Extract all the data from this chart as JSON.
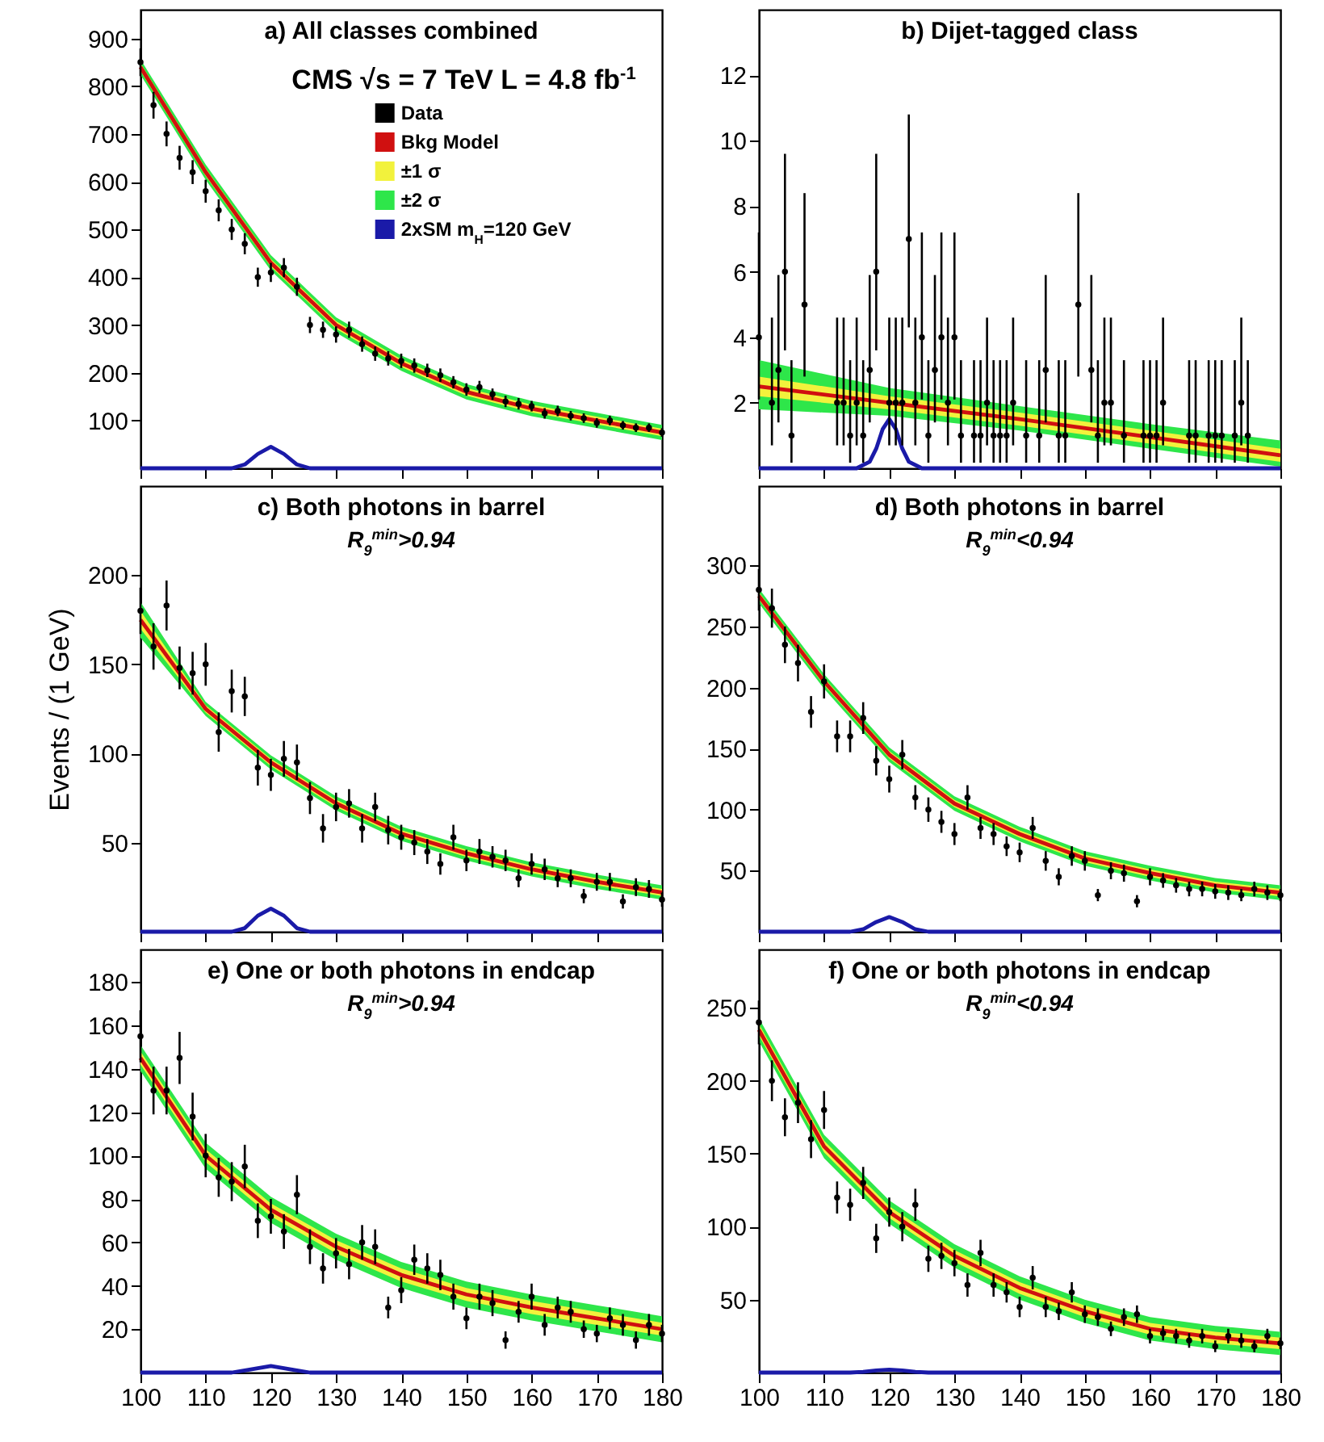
{
  "chart_data": [
    {
      "type": "scatter",
      "title": "a) All classes combined",
      "annotations": [
        "CMS √s = 7 TeV L = 4.8 fb$^{-1}$"
      ],
      "xlim": [
        100,
        180
      ],
      "xticks": [
        100,
        110,
        120,
        130,
        140,
        150,
        160,
        170,
        180
      ],
      "ylim": [
        0,
        960
      ],
      "yticks": [
        100,
        200,
        300,
        400,
        500,
        600,
        700,
        800,
        900
      ],
      "tick_labels": "y",
      "legend": "top right",
      "series": [
        {
          "name": "Data",
          "type": "scatter",
          "color": "#000000",
          "marker": "circle",
          "x": [
            100,
            102,
            104,
            106,
            108,
            110,
            112,
            114,
            116,
            118,
            120,
            122,
            124,
            126,
            128,
            130,
            132,
            134,
            136,
            138,
            140,
            142,
            144,
            146,
            148,
            150,
            152,
            154,
            156,
            158,
            160,
            162,
            164,
            166,
            168,
            170,
            172,
            174,
            176,
            178,
            180
          ],
          "values": [
            850,
            760,
            700,
            650,
            620,
            580,
            540,
            500,
            470,
            400,
            410,
            420,
            380,
            300,
            290,
            280,
            290,
            260,
            240,
            230,
            225,
            215,
            205,
            195,
            180,
            165,
            170,
            155,
            140,
            135,
            130,
            115,
            120,
            110,
            105,
            95,
            100,
            90,
            85,
            85,
            75
          ],
          "errors": [
            29,
            28,
            26,
            25,
            25,
            24,
            23,
            22,
            22,
            20,
            20,
            20,
            19,
            17,
            17,
            17,
            17,
            16,
            15,
            15,
            15,
            15,
            14,
            14,
            13,
            13,
            13,
            12,
            12,
            12,
            11,
            11,
            11,
            10,
            10,
            10,
            10,
            9,
            9,
            9,
            9
          ]
        },
        {
          "name": "Bkg Model",
          "type": "line",
          "color": "#d01010",
          "x": [
            100,
            110,
            120,
            130,
            140,
            150,
            160,
            170,
            180
          ],
          "values": [
            840,
            620,
            430,
            300,
            220,
            160,
            125,
            100,
            75
          ]
        },
        {
          "name": "±1 σ",
          "type": "line",
          "color": "#f2f23c",
          "x": [
            100,
            110,
            120,
            130,
            140,
            150,
            160,
            170,
            180
          ],
          "values": [
            null,
            null,
            null,
            null,
            null,
            null,
            null,
            null,
            null
          ],
          "lower": [
            832,
            612,
            422,
            292,
            212,
            152,
            117,
            92,
            67
          ],
          "upper": [
            848,
            628,
            438,
            308,
            228,
            168,
            133,
            108,
            83
          ]
        },
        {
          "name": "±2 σ",
          "type": "line",
          "color": "#2ee64a",
          "x": [
            100,
            110,
            120,
            130,
            140,
            150,
            160,
            170,
            180
          ],
          "values": [
            null,
            null,
            null,
            null,
            null,
            null,
            null,
            null,
            null
          ],
          "lower": [
            824,
            604,
            414,
            284,
            204,
            144,
            109,
            84,
            59
          ],
          "upper": [
            856,
            636,
            446,
            316,
            236,
            176,
            141,
            116,
            91
          ]
        },
        {
          "name": "2xSM m$_{H}$=120 GeV",
          "type": "line",
          "color": "#1a1aa8",
          "x": [
            100,
            114,
            116,
            118,
            120,
            122,
            124,
            126,
            180
          ],
          "values": [
            0,
            0,
            8,
            30,
            45,
            30,
            8,
            0,
            0
          ]
        }
      ]
    },
    {
      "type": "scatter",
      "title": "b) Dijet-tagged class",
      "xlim": [
        100,
        180
      ],
      "xticks": [
        100,
        110,
        120,
        130,
        140,
        150,
        160,
        170,
        180
      ],
      "ylim": [
        0,
        14
      ],
      "yticks": [
        2,
        4,
        6,
        8,
        10,
        12
      ],
      "tick_labels": "y",
      "series": [
        {
          "type": "line",
          "color": "#2ee64a",
          "x": [
            100,
            120,
            140,
            160,
            180
          ],
          "values": [
            null,
            null,
            null,
            null,
            null
          ],
          "lower": [
            1.8,
            1.6,
            1.15,
            0.6,
            0.05
          ],
          "upper": [
            3.3,
            2.45,
            1.9,
            1.35,
            0.85
          ]
        },
        {
          "type": "line",
          "color": "#f2f23c",
          "x": [
            100,
            120,
            140,
            160,
            180
          ],
          "values": [
            null,
            null,
            null,
            null,
            null
          ],
          "lower": [
            2.2,
            1.8,
            1.3,
            0.75,
            0.2
          ],
          "upper": [
            2.8,
            2.2,
            1.7,
            1.15,
            0.6
          ]
        },
        {
          "type": "line",
          "color": "#d01010",
          "x": [
            100,
            120,
            140,
            160,
            180
          ],
          "values": [
            2.5,
            2.0,
            1.5,
            0.95,
            0.4
          ]
        },
        {
          "type": "line",
          "color": "#1a1aa8",
          "x": [
            100,
            115,
            117,
            118,
            119,
            120,
            121,
            122,
            123,
            125,
            180
          ],
          "values": [
            0,
            0,
            0.2,
            0.6,
            1.2,
            1.5,
            1.2,
            0.6,
            0.2,
            0,
            0
          ]
        },
        {
          "type": "scatter",
          "color": "#000000",
          "marker": "circle",
          "x": [
            100,
            102,
            103,
            104,
            105,
            107,
            112,
            113,
            114,
            115,
            116,
            117,
            118,
            120,
            121,
            122,
            123,
            124,
            125,
            126,
            127,
            128,
            129,
            130,
            131,
            133,
            134,
            135,
            136,
            137,
            138,
            139,
            141,
            143,
            144,
            146,
            147,
            149,
            151,
            152,
            153,
            154,
            156,
            159,
            160,
            161,
            162,
            166,
            167,
            169,
            170,
            171,
            173,
            174,
            175
          ],
          "values": [
            4,
            2,
            3,
            6,
            1,
            5,
            2,
            2,
            1,
            2,
            1,
            3,
            6,
            2,
            2,
            2,
            7,
            2,
            4,
            1,
            3,
            4,
            2,
            4,
            1,
            1,
            1,
            2,
            1,
            1,
            1,
            2,
            1,
            1,
            3,
            1,
            1,
            5,
            3,
            1,
            2,
            2,
            1,
            1,
            1,
            1,
            2,
            1,
            1,
            1,
            1,
            1,
            1,
            2,
            1
          ],
          "errors": [
            [
              2.1,
              7.2
            ],
            [
              0.7,
              4.6
            ],
            [
              1.4,
              5.9
            ],
            [
              3.6,
              9.6
            ],
            [
              0.17,
              3.3
            ],
            [
              2.8,
              8.4
            ],
            [
              0.7,
              4.6
            ],
            [
              0.7,
              4.6
            ],
            [
              0.17,
              3.3
            ],
            [
              0.7,
              4.6
            ],
            [
              0.17,
              3.3
            ],
            [
              1.4,
              5.9
            ],
            [
              3.6,
              9.6
            ],
            [
              0.7,
              4.6
            ],
            [
              0.7,
              4.6
            ],
            [
              0.7,
              4.6
            ],
            [
              4.3,
              10.8
            ],
            [
              0.7,
              4.6
            ],
            [
              2.1,
              7.2
            ],
            [
              0.17,
              3.3
            ],
            [
              1.4,
              5.9
            ],
            [
              2.1,
              7.2
            ],
            [
              0.7,
              4.6
            ],
            [
              2.1,
              7.2
            ],
            [
              0.17,
              3.3
            ],
            [
              0.17,
              3.3
            ],
            [
              0.17,
              3.3
            ],
            [
              0.7,
              4.6
            ],
            [
              0.17,
              3.3
            ],
            [
              0.17,
              3.3
            ],
            [
              0.17,
              3.3
            ],
            [
              0.7,
              4.6
            ],
            [
              0.17,
              3.3
            ],
            [
              0.17,
              3.3
            ],
            [
              1.4,
              5.9
            ],
            [
              0.17,
              3.3
            ],
            [
              0.17,
              3.3
            ],
            [
              2.8,
              8.4
            ],
            [
              1.4,
              5.9
            ],
            [
              0.17,
              3.3
            ],
            [
              0.7,
              4.6
            ],
            [
              0.7,
              4.6
            ],
            [
              0.17,
              3.3
            ],
            [
              0.17,
              3.3
            ],
            [
              0.17,
              3.3
            ],
            [
              0.17,
              3.3
            ],
            [
              0.7,
              4.6
            ],
            [
              0.17,
              3.3
            ],
            [
              0.17,
              3.3
            ],
            [
              0.17,
              3.3
            ],
            [
              0.17,
              3.3
            ],
            [
              0.17,
              3.3
            ],
            [
              0.17,
              3.3
            ],
            [
              0.7,
              4.6
            ],
            [
              0.17,
              3.3
            ]
          ]
        }
      ]
    },
    {
      "type": "scatter",
      "title": "c) Both photons in barrel",
      "subtitle": "R$_{9}$$^{min}$>0.94",
      "ylabel": "Events / (1 GeV)",
      "xlim": [
        100,
        180
      ],
      "xticks": [
        100,
        110,
        120,
        130,
        140,
        150,
        160,
        170,
        180
      ],
      "ylim": [
        0,
        250
      ],
      "yticks": [
        50,
        100,
        150,
        200
      ],
      "tick_labels": "y",
      "series": [
        {
          "type": "line",
          "color": "#2ee64a",
          "x": [
            100,
            110,
            120,
            130,
            140,
            150,
            160,
            170,
            180
          ],
          "values": [
            null,
            null,
            null,
            null,
            null,
            null,
            null,
            null,
            null
          ],
          "lower": [
            165,
            121,
            91,
            68,
            51,
            40,
            31,
            24,
            18
          ],
          "upper": [
            185,
            129,
            99,
            76,
            59,
            48,
            39,
            32,
            26
          ]
        },
        {
          "type": "line",
          "color": "#f2f23c",
          "x": [
            100,
            110,
            120,
            130,
            140,
            150,
            160,
            170,
            180
          ],
          "values": [
            null,
            null,
            null,
            null,
            null,
            null,
            null,
            null,
            null
          ],
          "lower": [
            170,
            123,
            93,
            70,
            53,
            42,
            33,
            26,
            20
          ],
          "upper": [
            180,
            127,
            97,
            74,
            57,
            46,
            37,
            30,
            24
          ]
        },
        {
          "type": "line",
          "color": "#d01010",
          "x": [
            100,
            110,
            120,
            130,
            140,
            150,
            160,
            170,
            180
          ],
          "values": [
            175,
            125,
            95,
            72,
            55,
            44,
            35,
            28,
            22
          ]
        },
        {
          "type": "line",
          "color": "#1a1aa8",
          "x": [
            100,
            114,
            116,
            118,
            120,
            122,
            124,
            126,
            180
          ],
          "values": [
            0,
            0,
            2,
            9,
            13,
            9,
            2,
            0,
            0
          ]
        },
        {
          "type": "scatter",
          "color": "#000000",
          "marker": "circle",
          "x": [
            100,
            102,
            104,
            106,
            108,
            110,
            112,
            114,
            116,
            118,
            120,
            122,
            124,
            126,
            128,
            130,
            132,
            134,
            136,
            138,
            140,
            142,
            144,
            146,
            148,
            150,
            152,
            154,
            156,
            158,
            160,
            162,
            164,
            166,
            168,
            170,
            172,
            174,
            176,
            178,
            180
          ],
          "values": [
            180,
            160,
            183,
            148,
            145,
            150,
            112,
            135,
            132,
            92,
            88,
            97,
            95,
            75,
            58,
            70,
            72,
            58,
            70,
            57,
            53,
            50,
            45,
            38,
            53,
            40,
            45,
            42,
            40,
            30,
            38,
            35,
            30,
            30,
            20,
            28,
            28,
            17,
            25,
            24,
            18
          ],
          "errors": [
            13,
            13,
            14,
            12,
            12,
            12,
            11,
            12,
            11,
            10,
            9,
            10,
            10,
            9,
            8,
            8,
            8,
            8,
            8,
            8,
            7,
            7,
            7,
            6,
            7,
            6,
            7,
            6,
            6,
            5,
            6,
            6,
            5,
            5,
            4,
            5,
            5,
            4,
            5,
            5,
            4
          ]
        }
      ]
    },
    {
      "type": "scatter",
      "title": "d) Both photons in barrel",
      "subtitle": "R$_{9}$$^{min}$<0.94",
      "xlim": [
        100,
        180
      ],
      "xticks": [
        100,
        110,
        120,
        130,
        140,
        150,
        160,
        170,
        180
      ],
      "ylim": [
        0,
        365
      ],
      "yticks": [
        50,
        100,
        150,
        200,
        250,
        300
      ],
      "tick_labels": "y",
      "series": [
        {
          "type": "line",
          "color": "#2ee64a",
          "x": [
            100,
            110,
            120,
            130,
            140,
            150,
            160,
            170,
            180
          ],
          "values": [
            null,
            null,
            null,
            null,
            null,
            null,
            null,
            null,
            null
          ],
          "lower": [
            269,
            199,
            139,
            99,
            74,
            54,
            42,
            32,
            26
          ],
          "upper": [
            281,
            211,
            151,
            111,
            86,
            66,
            54,
            44,
            38
          ]
        },
        {
          "type": "line",
          "color": "#f2f23c",
          "x": [
            100,
            110,
            120,
            130,
            140,
            150,
            160,
            170,
            180
          ],
          "values": [
            null,
            null,
            null,
            null,
            null,
            null,
            null,
            null,
            null
          ],
          "lower": [
            272,
            202,
            142,
            102,
            77,
            57,
            45,
            35,
            29
          ],
          "upper": [
            278,
            208,
            148,
            108,
            83,
            63,
            51,
            41,
            35
          ]
        },
        {
          "type": "line",
          "color": "#d01010",
          "x": [
            100,
            110,
            120,
            130,
            140,
            150,
            160,
            170,
            180
          ],
          "values": [
            275,
            205,
            145,
            105,
            80,
            60,
            48,
            38,
            32
          ]
        },
        {
          "type": "line",
          "color": "#1a1aa8",
          "x": [
            100,
            114,
            116,
            118,
            120,
            122,
            124,
            126,
            180
          ],
          "values": [
            0,
            0,
            2,
            8,
            12,
            8,
            2,
            0,
            0
          ]
        },
        {
          "type": "scatter",
          "color": "#000000",
          "marker": "circle",
          "x": [
            100,
            102,
            104,
            106,
            108,
            110,
            112,
            114,
            116,
            118,
            120,
            122,
            124,
            126,
            128,
            130,
            132,
            134,
            136,
            138,
            140,
            142,
            144,
            146,
            148,
            150,
            152,
            154,
            156,
            158,
            160,
            162,
            164,
            166,
            168,
            170,
            172,
            174,
            176,
            178,
            180
          ],
          "values": [
            280,
            265,
            235,
            220,
            180,
            205,
            160,
            160,
            175,
            140,
            125,
            145,
            110,
            100,
            90,
            80,
            110,
            85,
            80,
            70,
            65,
            85,
            58,
            45,
            62,
            58,
            30,
            50,
            48,
            25,
            45,
            42,
            38,
            35,
            35,
            33,
            32,
            30,
            35,
            32,
            30
          ],
          "errors": [
            17,
            16,
            15,
            15,
            13,
            14,
            13,
            13,
            13,
            12,
            11,
            12,
            10,
            10,
            9,
            9,
            10,
            9,
            9,
            8,
            8,
            9,
            8,
            7,
            8,
            8,
            5,
            7,
            7,
            5,
            7,
            6,
            6,
            6,
            6,
            6,
            6,
            5,
            6,
            6,
            5
          ]
        }
      ]
    },
    {
      "type": "scatter",
      "title": "e) One or both photons in endcap",
      "subtitle": "R$_{9}$$^{min}$>0.94",
      "xlim": [
        100,
        180
      ],
      "xticks": [
        100,
        110,
        120,
        130,
        140,
        150,
        160,
        170,
        180
      ],
      "ylim": [
        0,
        195
      ],
      "yticks": [
        20,
        40,
        60,
        80,
        100,
        120,
        140,
        160,
        180
      ],
      "series": [
        {
          "type": "line",
          "color": "#2ee64a",
          "x": [
            100,
            110,
            120,
            130,
            140,
            150,
            160,
            170,
            180
          ],
          "values": [
            null,
            null,
            null,
            null,
            null,
            null,
            null,
            null,
            null
          ],
          "lower": [
            139,
            94,
            69,
            52,
            39,
            30,
            24,
            19,
            14
          ],
          "upper": [
            151,
            106,
            81,
            64,
            51,
            42,
            36,
            31,
            26
          ]
        },
        {
          "type": "line",
          "color": "#f2f23c",
          "x": [
            100,
            110,
            120,
            130,
            140,
            150,
            160,
            170,
            180
          ],
          "values": [
            null,
            null,
            null,
            null,
            null,
            null,
            null,
            null,
            null
          ],
          "lower": [
            142,
            97,
            72,
            55,
            42,
            33,
            27,
            22,
            17
          ],
          "upper": [
            148,
            103,
            78,
            61,
            48,
            39,
            33,
            28,
            23
          ]
        },
        {
          "type": "line",
          "color": "#d01010",
          "x": [
            100,
            110,
            120,
            130,
            140,
            150,
            160,
            170,
            180
          ],
          "values": [
            145,
            100,
            75,
            58,
            45,
            36,
            30,
            25,
            20
          ]
        },
        {
          "type": "line",
          "color": "#1a1aa8",
          "x": [
            100,
            114,
            116,
            118,
            120,
            122,
            124,
            126,
            180
          ],
          "values": [
            0,
            0,
            1,
            2,
            3,
            2,
            1,
            0,
            0
          ]
        },
        {
          "type": "scatter",
          "color": "#000000",
          "marker": "circle",
          "x": [
            100,
            102,
            104,
            106,
            108,
            110,
            112,
            114,
            116,
            118,
            120,
            122,
            124,
            126,
            128,
            130,
            132,
            134,
            136,
            138,
            140,
            142,
            144,
            146,
            148,
            150,
            152,
            154,
            156,
            158,
            160,
            162,
            164,
            166,
            168,
            170,
            172,
            174,
            176,
            178,
            180
          ],
          "values": [
            155,
            130,
            130,
            145,
            118,
            100,
            90,
            88,
            95,
            70,
            72,
            65,
            82,
            58,
            48,
            55,
            50,
            60,
            58,
            30,
            38,
            52,
            48,
            45,
            35,
            25,
            35,
            32,
            15,
            28,
            35,
            22,
            30,
            28,
            20,
            18,
            25,
            22,
            15,
            22,
            18
          ],
          "errors": [
            12,
            11,
            11,
            12,
            11,
            10,
            9,
            9,
            10,
            8,
            8,
            8,
            9,
            8,
            7,
            7,
            7,
            8,
            8,
            5,
            6,
            7,
            7,
            7,
            6,
            5,
            6,
            6,
            4,
            5,
            6,
            5,
            5,
            5,
            4,
            4,
            5,
            5,
            4,
            5,
            4
          ]
        }
      ]
    },
    {
      "type": "scatter",
      "title": "f) One or both photons in endcap",
      "subtitle": "R$_{9}$$^{min}$<0.94",
      "xlim": [
        100,
        180
      ],
      "xticks": [
        100,
        110,
        120,
        130,
        140,
        150,
        160,
        170,
        180
      ],
      "ylim": [
        0,
        290
      ],
      "yticks": [
        50,
        100,
        150,
        200,
        250
      ],
      "series": [
        {
          "type": "line",
          "color": "#2ee64a",
          "x": [
            100,
            110,
            120,
            130,
            140,
            150,
            160,
            170,
            180
          ],
          "values": [
            null,
            null,
            null,
            null,
            null,
            null,
            null,
            null,
            null
          ],
          "lower": [
            227,
            147,
            102,
            72,
            50,
            34,
            22,
            16,
            12
          ],
          "upper": [
            243,
            163,
            118,
            88,
            66,
            50,
            38,
            32,
            28
          ]
        },
        {
          "type": "line",
          "color": "#f2f23c",
          "x": [
            100,
            110,
            120,
            130,
            140,
            150,
            160,
            170,
            180
          ],
          "values": [
            null,
            null,
            null,
            null,
            null,
            null,
            null,
            null,
            null
          ],
          "lower": [
            231,
            151,
            106,
            76,
            54,
            38,
            26,
            20,
            16
          ],
          "upper": [
            239,
            159,
            114,
            84,
            62,
            46,
            34,
            28,
            24
          ]
        },
        {
          "type": "line",
          "color": "#d01010",
          "x": [
            100,
            110,
            120,
            130,
            140,
            150,
            160,
            170,
            180
          ],
          "values": [
            235,
            155,
            110,
            80,
            58,
            42,
            30,
            24,
            20
          ]
        },
        {
          "type": "line",
          "color": "#1a1aa8",
          "x": [
            100,
            114,
            116,
            118,
            120,
            122,
            124,
            126,
            180
          ],
          "values": [
            0,
            0,
            0.5,
            1.5,
            2,
            1.5,
            0.5,
            0,
            0
          ]
        },
        {
          "type": "scatter",
          "color": "#000000",
          "marker": "circle",
          "x": [
            100,
            102,
            104,
            106,
            108,
            110,
            112,
            114,
            116,
            118,
            120,
            122,
            124,
            126,
            128,
            130,
            132,
            134,
            136,
            138,
            140,
            142,
            144,
            146,
            148,
            150,
            152,
            154,
            156,
            158,
            160,
            162,
            164,
            166,
            168,
            170,
            172,
            174,
            176,
            178,
            180
          ],
          "values": [
            240,
            200,
            175,
            185,
            160,
            180,
            120,
            115,
            130,
            92,
            110,
            100,
            115,
            78,
            80,
            75,
            60,
            82,
            60,
            55,
            45,
            65,
            45,
            42,
            55,
            40,
            38,
            30,
            38,
            40,
            25,
            27,
            25,
            22,
            25,
            18,
            25,
            22,
            18,
            25,
            20
          ],
          "errors": [
            15,
            14,
            13,
            14,
            13,
            13,
            11,
            11,
            11,
            10,
            10,
            10,
            11,
            9,
            9,
            9,
            8,
            9,
            8,
            7,
            7,
            8,
            7,
            6,
            7,
            6,
            6,
            5,
            6,
            6,
            5,
            5,
            5,
            5,
            5,
            4,
            5,
            5,
            4,
            5,
            4
          ]
        }
      ]
    }
  ]
}
